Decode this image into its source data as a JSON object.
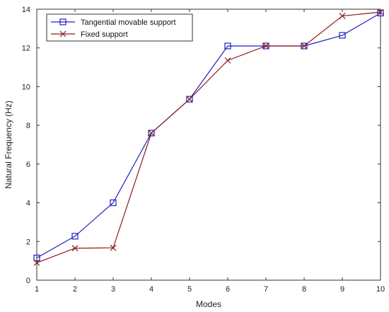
{
  "chart_data": {
    "type": "line",
    "title": "",
    "xlabel": "Modes",
    "ylabel": "Natural Frequency (Hz)",
    "x": [
      1,
      2,
      3,
      4,
      5,
      6,
      7,
      8,
      9,
      10
    ],
    "xlim": [
      1,
      10
    ],
    "ylim": [
      0,
      14
    ],
    "xticks": [
      "1",
      "2",
      "3",
      "4",
      "5",
      "6",
      "7",
      "8",
      "9",
      "10"
    ],
    "yticks": [
      "0",
      "2",
      "4",
      "6",
      "8",
      "10",
      "12",
      "14"
    ],
    "grid": false,
    "legend_position": "top-left",
    "series": [
      {
        "name": "Tangential movable support",
        "color": "#1f1fbf",
        "marker": "square",
        "values": [
          1.15,
          2.27,
          4.0,
          7.6,
          9.35,
          12.1,
          12.1,
          12.1,
          12.65,
          13.8
        ]
      },
      {
        "name": "Fixed support",
        "color": "#8b1a1a",
        "marker": "x",
        "values": [
          0.9,
          1.65,
          1.67,
          7.6,
          9.35,
          11.35,
          12.1,
          12.1,
          13.65,
          13.85
        ]
      }
    ]
  }
}
